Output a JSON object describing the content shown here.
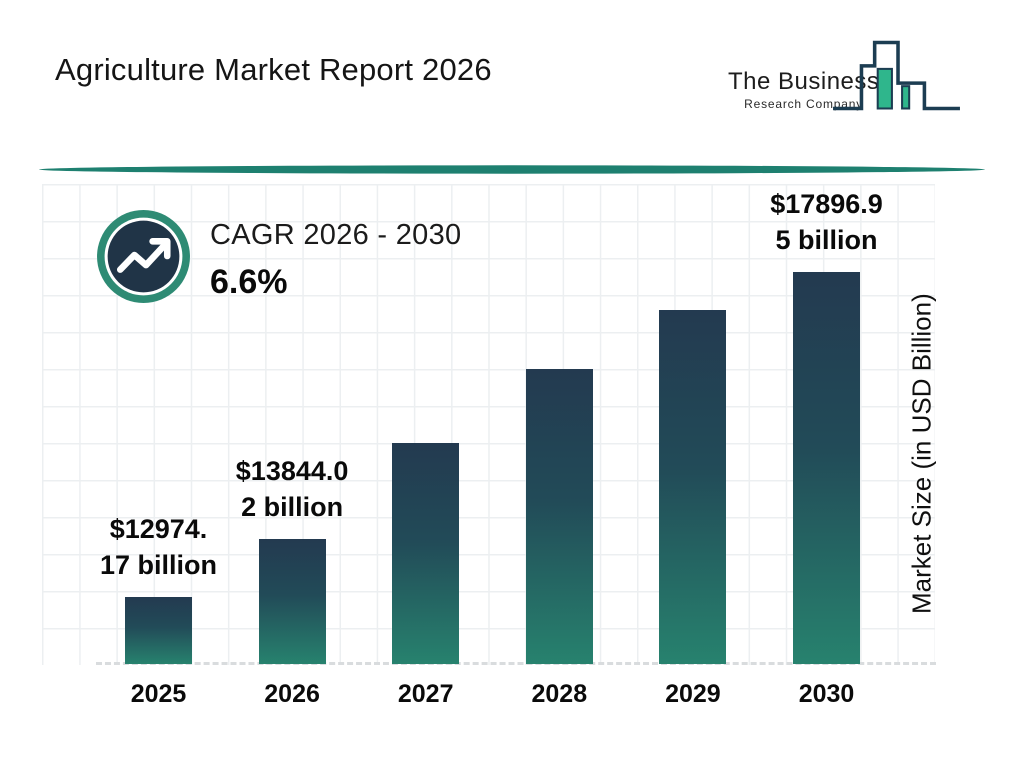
{
  "page": {
    "title": "Agriculture Market Report 2026"
  },
  "logo": {
    "line1": "The Business",
    "line2": "Research Company",
    "icon": "bar-chart-skyline-icon"
  },
  "cagr": {
    "label": "CAGR 2026 - 2030",
    "value": "6.6%"
  },
  "chart_data": {
    "type": "bar",
    "title": "Agriculture Market Report 2026",
    "categories": [
      "2025",
      "2026",
      "2027",
      "2028",
      "2029",
      "2030"
    ],
    "values": [
      12974.17,
      13844.02,
      15300,
      16420,
      17320,
      17896.95
    ],
    "values_note": "2027-2029 estimated from bar heights; only 2025, 2026 and 2030 carry data labels",
    "bar_labels": [
      {
        "line1": "$12974.",
        "line2": "17 billion"
      },
      {
        "line1": "$13844.0",
        "line2": "2 billion"
      },
      null,
      null,
      null,
      {
        "line1": "$17896.9",
        "line2": "5 billion"
      }
    ],
    "xlabel": "",
    "ylabel": "Market Size (in USD Billion)",
    "ylim": [
      11950,
      19235
    ],
    "grid": true,
    "legend": "none",
    "baseline_style": "dashed"
  },
  "colors": {
    "accent_teal": "#2E8B74",
    "divider_teal": "#1E8070",
    "bar_gradient_top": "#233A50",
    "bar_gradient_bottom": "#27826E",
    "logo_navy": "#1C3D52",
    "logo_green": "#2FB68C",
    "grid_line": "#ECEFF1",
    "text": "#0A0A0A"
  }
}
